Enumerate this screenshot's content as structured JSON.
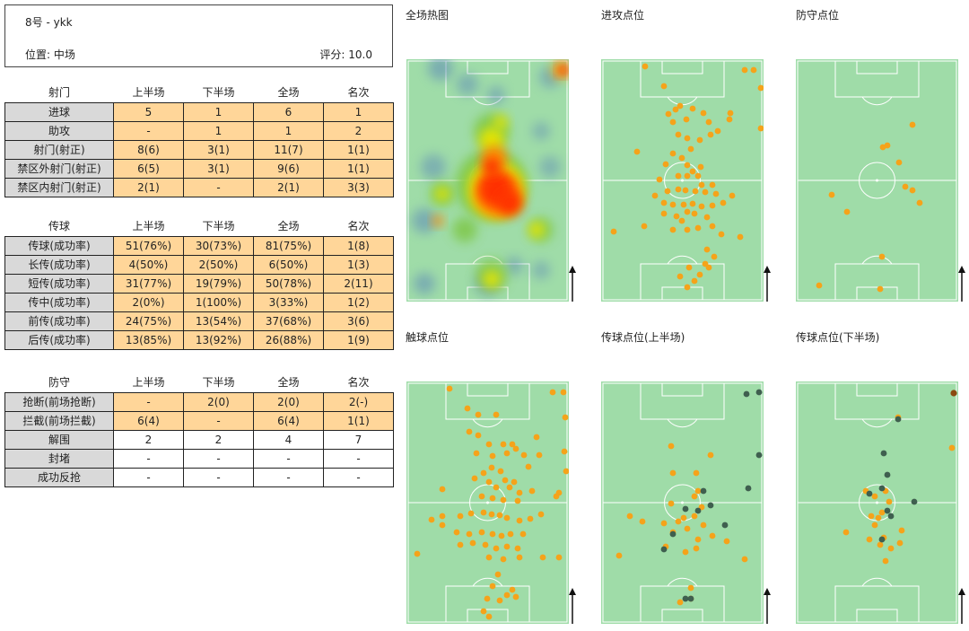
{
  "player": {
    "name": "8号 - ykk",
    "position": "位置: 中场",
    "score": "评分: 10.0"
  },
  "tables": {
    "shooting": {
      "headers": [
        "射门",
        "上半场",
        "下半场",
        "全场",
        "名次"
      ],
      "rows": [
        [
          "进球",
          "5",
          "1",
          "6",
          "1"
        ],
        [
          "助攻",
          "-",
          "1",
          "1",
          "2"
        ],
        [
          "射门(射正)",
          "8(6)",
          "3(1)",
          "11(7)",
          "1(1)"
        ],
        [
          "禁区外射门(射正)",
          "6(5)",
          "3(1)",
          "9(6)",
          "1(1)"
        ],
        [
          "禁区内射门(射正)",
          "2(1)",
          "-",
          "2(1)",
          "3(3)"
        ]
      ]
    },
    "passing": {
      "headers": [
        "传球",
        "上半场",
        "下半场",
        "全场",
        "名次"
      ],
      "rows": [
        [
          "传球(成功率)",
          "51(76%)",
          "30(73%)",
          "81(75%)",
          "1(8)"
        ],
        [
          "长传(成功率)",
          "4(50%)",
          "2(50%)",
          "6(50%)",
          "1(3)"
        ],
        [
          "短传(成功率)",
          "31(77%)",
          "19(79%)",
          "50(78%)",
          "2(11)"
        ],
        [
          "传中(成功率)",
          "2(0%)",
          "1(100%)",
          "3(33%)",
          "1(2)"
        ],
        [
          "前传(成功率)",
          "24(75%)",
          "13(54%)",
          "37(68%)",
          "3(6)"
        ],
        [
          "后传(成功率)",
          "13(85%)",
          "13(92%)",
          "26(88%)",
          "1(9)"
        ]
      ]
    },
    "defense": {
      "headers": [
        "防守",
        "上半场",
        "下半场",
        "全场",
        "名次"
      ],
      "rows": [
        [
          "抢断(前场抢断)",
          "-",
          "2(0)",
          "2(0)",
          "2(-)"
        ],
        [
          "拦截(前场拦截)",
          "6(4)",
          "-",
          "6(4)",
          "1(1)"
        ],
        [
          "解围",
          "2",
          "2",
          "4",
          "7"
        ],
        [
          "封堵",
          "-",
          "-",
          "-",
          "-"
        ],
        [
          "成功反抢",
          "-",
          "-",
          "-",
          "-"
        ]
      ]
    }
  },
  "panels": {
    "heatmap": {
      "title": "全场热图"
    },
    "attack": {
      "title": "进攻点位"
    },
    "defense": {
      "title": "防守点位"
    },
    "touch": {
      "title": "触球点位"
    },
    "pass_first": {
      "title": "传球点位(上半场)"
    },
    "pass_second": {
      "title": "传球点位(下半场)"
    }
  },
  "colors": {
    "pitch": "#9fdca8",
    "line": "#ffffff",
    "highlight_cell": "#ffd699",
    "label_cell": "#d9d9d9",
    "point_orange": "#f5a31a",
    "point_dark": "#3f5f4f",
    "point_brown": "#8b4a10"
  }
}
